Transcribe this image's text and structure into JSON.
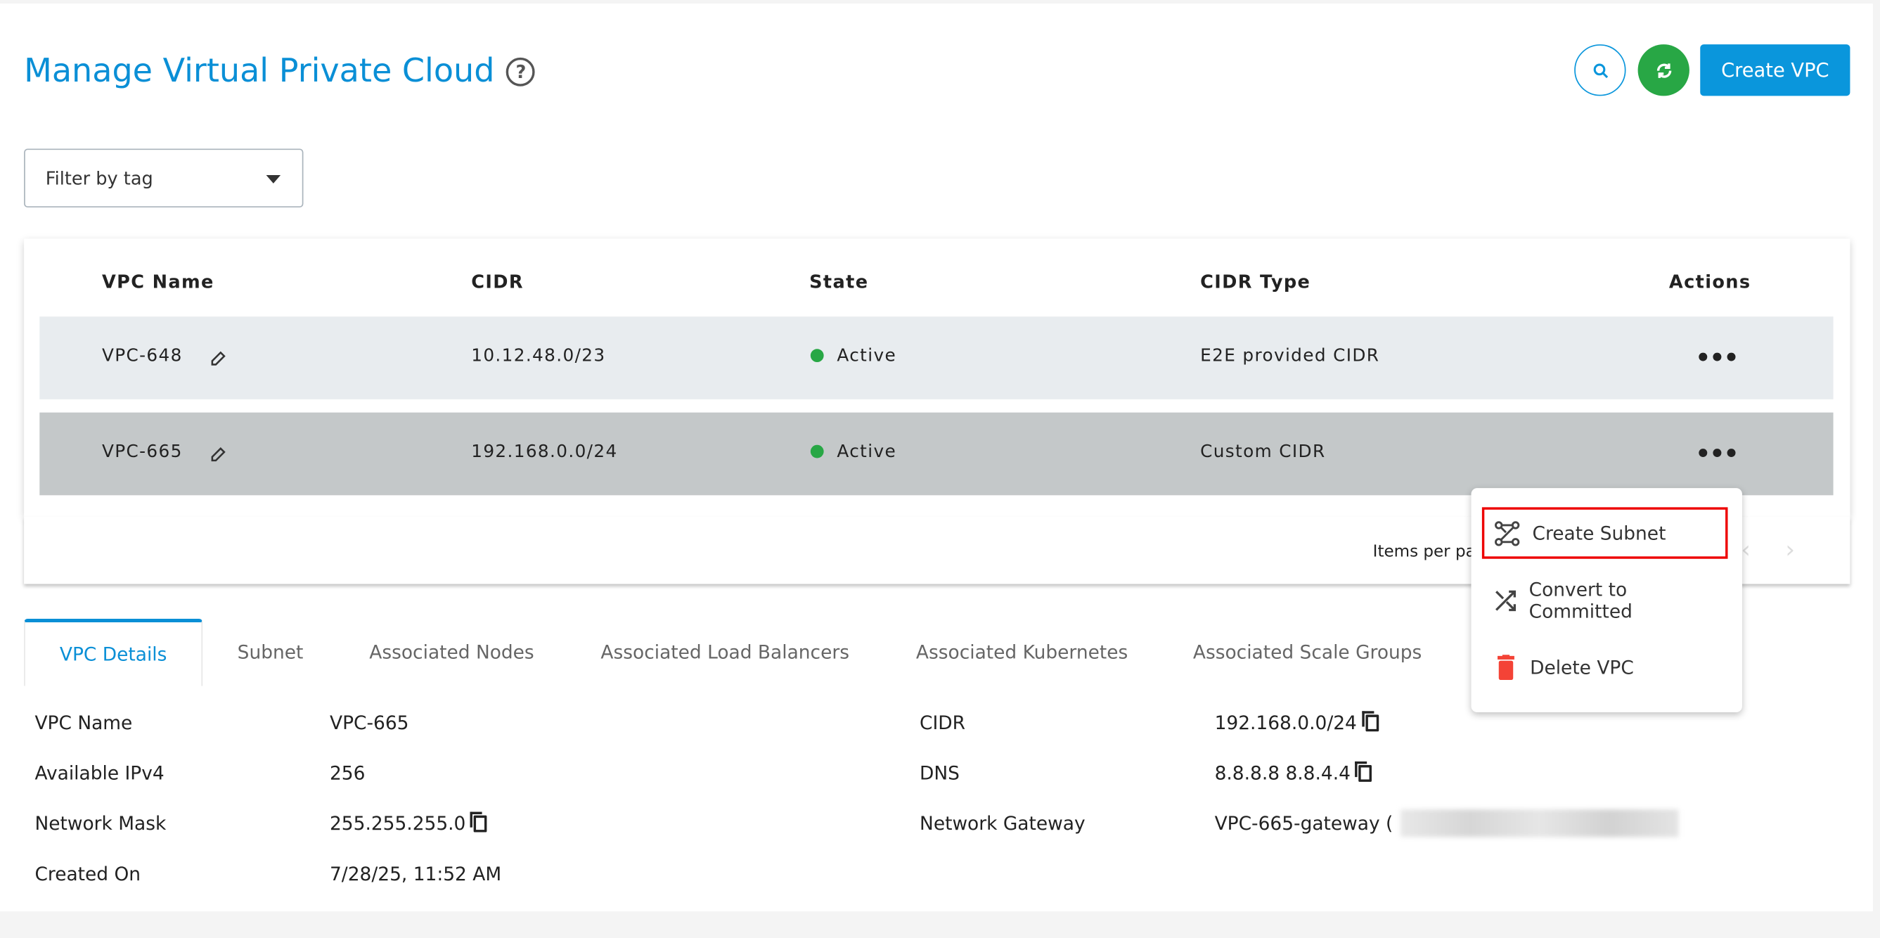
{
  "header": {
    "title": "Manage Virtual Private Cloud",
    "create_label": "Create VPC"
  },
  "filter": {
    "placeholder": "Filter by tag"
  },
  "table": {
    "columns": [
      "VPC Name",
      "CIDR",
      "State",
      "CIDR Type",
      "Actions"
    ],
    "rows": [
      {
        "name": "VPC-648",
        "cidr": "10.12.48.0/23",
        "state": "Active",
        "cidr_type": "E2E provided CIDR"
      },
      {
        "name": "VPC-665",
        "cidr": "192.168.0.0/24",
        "state": "Active",
        "cidr_type": "Custom CIDR"
      }
    ],
    "items_per_page": "Items per pa"
  },
  "menu": {
    "items": [
      "Create Subnet",
      "Convert to Committed",
      "Delete VPC"
    ]
  },
  "tabs": [
    "VPC Details",
    "Subnet",
    "Associated Nodes",
    "Associated Load Balancers",
    "Associated Kubernetes",
    "Associated Scale Groups"
  ],
  "details": {
    "left": [
      {
        "label": "VPC Name",
        "value": "VPC-665"
      },
      {
        "label": "Available IPv4",
        "value": "256"
      },
      {
        "label": "Network Mask",
        "value": "255.255.255.0"
      },
      {
        "label": "Created On",
        "value": "7/28/25, 11:52 AM"
      }
    ],
    "right": [
      {
        "label": "CIDR",
        "value": "192.168.0.0/24"
      },
      {
        "label": "DNS",
        "value": "8.8.8.8 8.8.4.4"
      },
      {
        "label": "Network Gateway",
        "value": "VPC-665-gateway ("
      }
    ]
  },
  "colors": {
    "accent": "#0a96dc",
    "success": "#28a745",
    "danger": "#f44336",
    "highlight": "#ee0000"
  }
}
